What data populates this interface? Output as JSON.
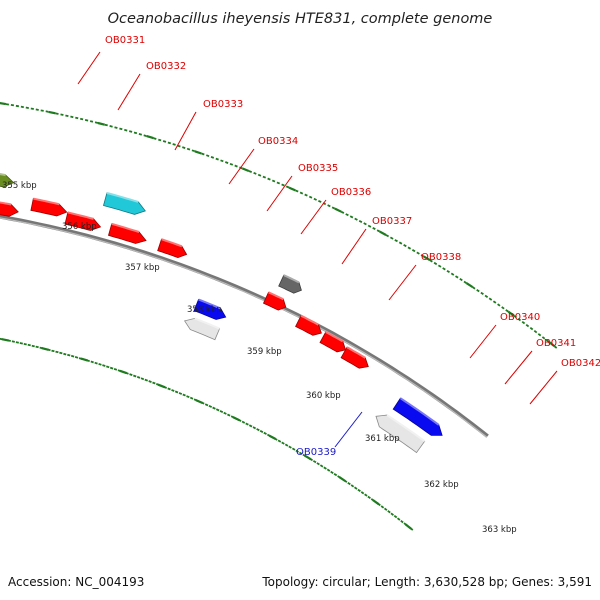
{
  "title": "Oceanobacillus iheyensis HTE831, complete genome",
  "footer": {
    "accession": "Accession: NC_004193",
    "topology": "Topology: circular; Length: 3,630,528 bp; Genes: 3,591"
  },
  "colors": {
    "backbone": "#777777",
    "tick": "#1e7a1e",
    "label_red": "#dd0000",
    "label_blue": "#1a1acc",
    "red": "#ff0000",
    "blue": "#0a0af0",
    "olive": "#6b8e23",
    "cyan": "#20c8d8",
    "orange": "#ff9900",
    "gray": "#666666",
    "white": "#e6e6e6"
  },
  "kbp_labels": [
    "355 kbp",
    "356 kbp",
    "357 kbp",
    "358 kbp",
    "359 kbp",
    "360 kbp",
    "361 kbp",
    "362 kbp",
    "363 kbp"
  ],
  "gene_labels": [
    {
      "id": "OB0331",
      "color": "red"
    },
    {
      "id": "OB0332",
      "color": "red"
    },
    {
      "id": "OB0333",
      "color": "red"
    },
    {
      "id": "OB0334",
      "color": "red"
    },
    {
      "id": "OB0335",
      "color": "red"
    },
    {
      "id": "OB0336",
      "color": "red"
    },
    {
      "id": "OB0337",
      "color": "red"
    },
    {
      "id": "OB0338",
      "color": "red"
    },
    {
      "id": "OB0339",
      "color": "blue"
    },
    {
      "id": "OB0340",
      "color": "red"
    },
    {
      "id": "OB0341",
      "color": "red"
    },
    {
      "id": "OB0342",
      "color": "red"
    }
  ],
  "features": [
    {
      "color": "red"
    },
    {
      "color": "blue"
    },
    {
      "color": "red"
    },
    {
      "color": "olive"
    },
    {
      "color": "red"
    },
    {
      "color": "cyan"
    },
    {
      "color": "orange"
    },
    {
      "color": "red"
    },
    {
      "color": "olive"
    },
    {
      "color": "red"
    },
    {
      "color": "red"
    },
    {
      "color": "red"
    },
    {
      "color": "cyan"
    },
    {
      "color": "red"
    },
    {
      "color": "red"
    },
    {
      "color": "blue"
    },
    {
      "color": "white"
    },
    {
      "color": "gray"
    },
    {
      "color": "red"
    },
    {
      "color": "red"
    },
    {
      "color": "red"
    },
    {
      "color": "red"
    },
    {
      "color": "blue"
    },
    {
      "color": "white"
    }
  ]
}
